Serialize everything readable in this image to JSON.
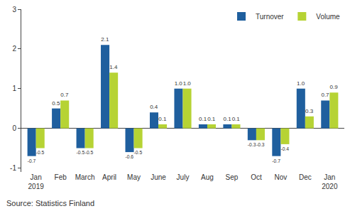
{
  "chart_data": {
    "type": "bar",
    "categories": [
      "Jan 2019",
      "Feb",
      "March",
      "April",
      "May",
      "June",
      "July",
      "Aug",
      "Sep",
      "Oct",
      "Nov",
      "Dec",
      "Jan 2020"
    ],
    "series": [
      {
        "name": "Turnover",
        "color": "#1f5f9e",
        "values": [
          -0.7,
          0.5,
          -0.5,
          2.1,
          -0.6,
          0.4,
          1.0,
          0.1,
          0.1,
          -0.3,
          -0.7,
          1.0,
          0.7
        ],
        "value_labels": [
          "-0.7",
          "0.5",
          "-0.5",
          "2.1",
          "-0.6",
          "0.4",
          "1.0",
          "0.1",
          "0.1",
          "-0.3",
          "-0.7",
          "1.0",
          "0.7"
        ]
      },
      {
        "name": "Volume",
        "color": "#b6d334",
        "values": [
          -0.5,
          0.7,
          -0.5,
          1.4,
          -0.5,
          0.1,
          1.0,
          0.1,
          0.1,
          -0.3,
          -0.4,
          0.3,
          0.9
        ],
        "value_labels": [
          "-0.5",
          "0.7",
          "-0.5",
          "1.4",
          "-0.5",
          "0.1",
          "1.0",
          "0.1",
          "0.1",
          "-0.3",
          "-0.4",
          "0.3",
          "0.9"
        ]
      }
    ],
    "ylim": [
      -1.1,
      3
    ],
    "yticks": [
      -1,
      0,
      1,
      2,
      3
    ],
    "grid": false,
    "legend": "top-right",
    "data_labels": true,
    "source": "Source: Statistics Finland"
  }
}
